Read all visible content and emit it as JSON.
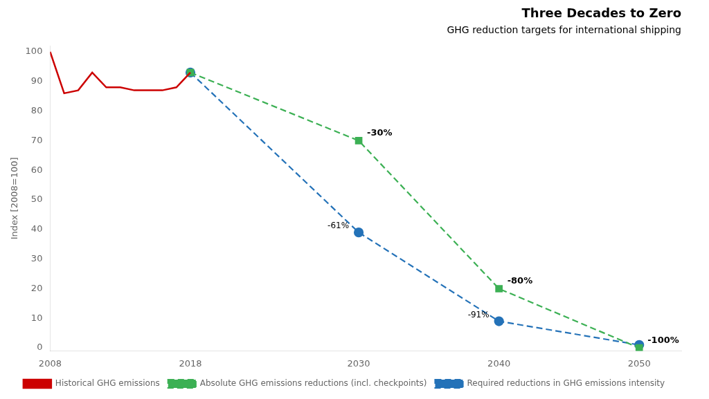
{
  "chart_data": {
    "type": "line",
    "title": "Three Decades to Zero",
    "subtitle": "GHG reduction targets for international shipping",
    "ylabel": "Index [2008=100]",
    "xlim": [
      2008,
      2053
    ],
    "ylim": [
      -1,
      102
    ],
    "xticks": [
      2008,
      2018,
      2030,
      2040,
      2050
    ],
    "yticks": [
      0,
      10,
      20,
      30,
      40,
      50,
      60,
      70,
      80,
      90,
      100
    ],
    "grid": false,
    "legend": "bottom",
    "series": [
      {
        "name": "Historical GHG emissions",
        "color": "#cc0000",
        "line_style": "solid",
        "marker": "none",
        "x": [
          2008,
          2009,
          2010,
          2011,
          2012,
          2013,
          2014,
          2015,
          2016,
          2017,
          2018
        ],
        "values": [
          100,
          86,
          87,
          93,
          88,
          88,
          87,
          87,
          87,
          88,
          93
        ]
      },
      {
        "name": "Absolute GHG emissions reductions (incl. checkpoints)",
        "color": "#3cb054",
        "line_style": "dashed",
        "marker": "square",
        "x": [
          2018,
          2030,
          2040,
          2050
        ],
        "values": [
          93,
          70,
          20,
          0
        ],
        "annotations": [
          {
            "x": 2030,
            "y": 70,
            "text": "-30%"
          },
          {
            "x": 2040,
            "y": 20,
            "text": "-80%"
          },
          {
            "x": 2050,
            "y": 0,
            "text": "-100%"
          }
        ]
      },
      {
        "name": "Required reductions in GHG emissions intensity",
        "color": "#2472b8",
        "line_style": "dashed",
        "marker": "circle",
        "x": [
          2018,
          2030,
          2040,
          2050
        ],
        "values": [
          93,
          39,
          9,
          1
        ],
        "annotations": [
          {
            "x": 2030,
            "y": 39,
            "text": "-61%"
          },
          {
            "x": 2040,
            "y": 9,
            "text": "-91%"
          }
        ]
      }
    ]
  }
}
